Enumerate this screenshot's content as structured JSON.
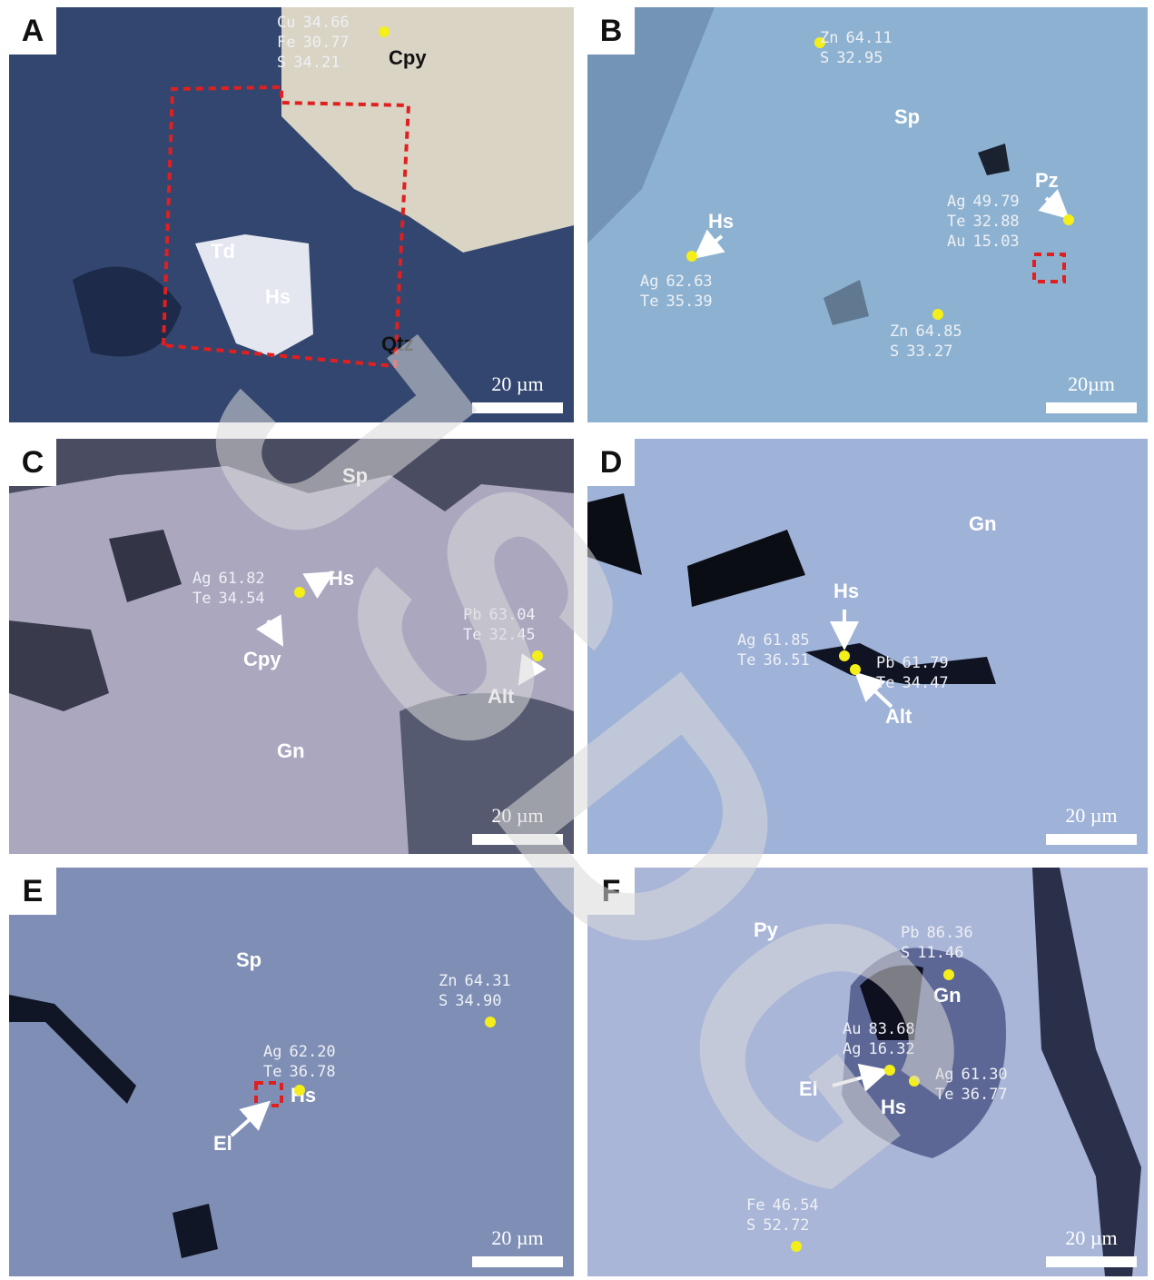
{
  "watermark": "JSDG",
  "panels": [
    {
      "label": "A",
      "minerals": [
        "Cpy",
        "Td",
        "Hs",
        "Qtz"
      ],
      "analyses": [
        {
          "lines": [
            {
              "element": "Cu",
              "value": "34.66"
            },
            {
              "element": "Fe",
              "value": "30.77"
            },
            {
              "element": "S",
              "value": "34.21"
            }
          ]
        }
      ],
      "scale": "20 µm"
    },
    {
      "label": "B",
      "minerals": [
        "Sp",
        "Hs",
        "Pz"
      ],
      "analyses": [
        {
          "lines": [
            {
              "element": "Zn",
              "value": "64.11"
            },
            {
              "element": "S",
              "value": "32.95"
            }
          ]
        },
        {
          "lines": [
            {
              "element": "Ag",
              "value": "49.79"
            },
            {
              "element": "Te",
              "value": "32.88"
            },
            {
              "element": "Au",
              "value": "15.03"
            }
          ]
        },
        {
          "lines": [
            {
              "element": "Ag",
              "value": "62.63"
            },
            {
              "element": "Te",
              "value": "35.39"
            }
          ]
        },
        {
          "lines": [
            {
              "element": "Zn",
              "value": "64.85"
            },
            {
              "element": "S",
              "value": "33.27"
            }
          ]
        }
      ],
      "scale": "20µm"
    },
    {
      "label": "C",
      "minerals": [
        "Sp",
        "Hs",
        "Cpy",
        "Alt",
        "Gn"
      ],
      "analyses": [
        {
          "lines": [
            {
              "element": "Ag",
              "value": "61.82"
            },
            {
              "element": "Te",
              "value": "34.54"
            }
          ]
        },
        {
          "lines": [
            {
              "element": "Pb",
              "value": "63.04"
            },
            {
              "element": "Te",
              "value": "32.45"
            }
          ]
        }
      ],
      "scale": "20 µm"
    },
    {
      "label": "D",
      "minerals": [
        "Gn",
        "Hs",
        "Alt"
      ],
      "analyses": [
        {
          "lines": [
            {
              "element": "Ag",
              "value": "61.85"
            },
            {
              "element": "Te",
              "value": "36.51"
            }
          ]
        },
        {
          "lines": [
            {
              "element": "Pb",
              "value": "61.79"
            },
            {
              "element": "Te",
              "value": "34.47"
            }
          ]
        }
      ],
      "scale": "20 µm"
    },
    {
      "label": "E",
      "minerals": [
        "Sp",
        "Hs",
        "El"
      ],
      "analyses": [
        {
          "lines": [
            {
              "element": "Zn",
              "value": "64.31"
            },
            {
              "element": "S",
              "value": "34.90"
            }
          ]
        },
        {
          "lines": [
            {
              "element": "Ag",
              "value": "62.20"
            },
            {
              "element": "Te",
              "value": "36.78"
            }
          ]
        }
      ],
      "scale": "20 µm"
    },
    {
      "label": "F",
      "minerals": [
        "Py",
        "Gn",
        "El",
        "Hs"
      ],
      "analyses": [
        {
          "lines": [
            {
              "element": "Pb",
              "value": "86.36"
            },
            {
              "element": "S",
              "value": "11.46"
            }
          ]
        },
        {
          "lines": [
            {
              "element": "Au",
              "value": "83.68"
            },
            {
              "element": "Ag",
              "value": "16.32"
            }
          ]
        },
        {
          "lines": [
            {
              "element": "Ag",
              "value": "61.30"
            },
            {
              "element": "Te",
              "value": "36.77"
            }
          ]
        },
        {
          "lines": [
            {
              "element": "Fe",
              "value": "46.54"
            },
            {
              "element": "S",
              "value": "52.72"
            }
          ]
        }
      ],
      "scale": "20 µm"
    }
  ]
}
